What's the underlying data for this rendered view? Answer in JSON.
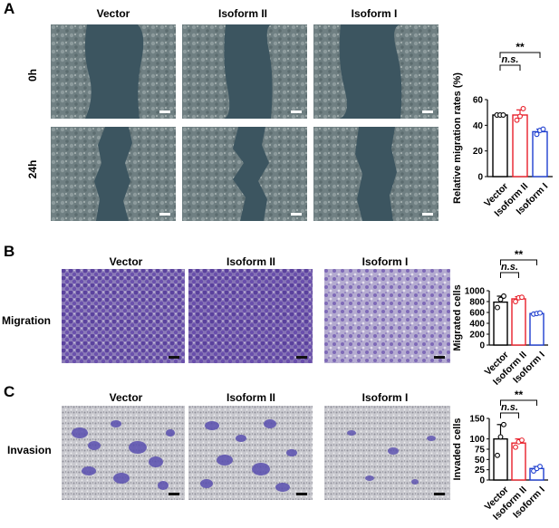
{
  "panels": {
    "A": {
      "letter": "A",
      "columns": [
        "Vector",
        "Isoform II",
        "Isoform I"
      ],
      "rows": [
        "0h",
        "24h"
      ]
    },
    "B": {
      "letter": "B",
      "columns": [
        "Vector",
        "Isoform II",
        "Isoform I"
      ],
      "row": "Migration"
    },
    "C": {
      "letter": "C",
      "columns": [
        "Vector",
        "Isoform II",
        "Isoform I"
      ],
      "row": "Invasion"
    }
  },
  "colors": {
    "vector": "#000000",
    "isoform_ii": "#e8202a",
    "isoform_i": "#1f3fcf"
  },
  "chart_data": [
    {
      "type": "bar",
      "categories": [
        "Vector",
        "Isoform II",
        "Isoform I"
      ],
      "values": [
        48,
        48,
        35
      ],
      "points": [
        [
          48,
          48,
          48
        ],
        [
          44,
          47,
          53
        ],
        [
          33,
          36,
          37
        ]
      ],
      "errors": [
        0.5,
        4,
        2
      ],
      "ylabel": "Relative migration rates (%)",
      "ylim": [
        0,
        60
      ],
      "yticks": [
        "0",
        "20",
        "40",
        "60"
      ],
      "annotations": [
        "n.s.",
        "**"
      ]
    },
    {
      "type": "bar",
      "categories": [
        "Vector",
        "Isoform II",
        "Isoform I"
      ],
      "values": [
        790,
        850,
        580
      ],
      "points": [
        [
          690,
          840,
          900
        ],
        [
          800,
          870,
          880
        ],
        [
          570,
          580,
          590
        ]
      ],
      "errors": [
        110,
        40,
        10
      ],
      "ylabel": "Migrated cells",
      "ylim": [
        0,
        1000
      ],
      "yticks": [
        "0",
        "200",
        "400",
        "600",
        "800",
        "1000"
      ],
      "annotations": [
        "n.s.",
        "**"
      ]
    },
    {
      "type": "bar",
      "categories": [
        "Vector",
        "Isoform II",
        "Isoform I"
      ],
      "values": [
        100,
        90,
        28
      ],
      "points": [
        [
          60,
          105,
          135
        ],
        [
          80,
          93,
          97
        ],
        [
          22,
          28,
          33
        ]
      ],
      "errors": [
        35,
        10,
        5
      ],
      "ylabel": "Invaded cells",
      "ylim": [
        0,
        150
      ],
      "yticks": [
        "0",
        "25",
        "50",
        "75",
        "100",
        "150"
      ],
      "annotations": [
        "n.s.",
        "**"
      ]
    }
  ]
}
